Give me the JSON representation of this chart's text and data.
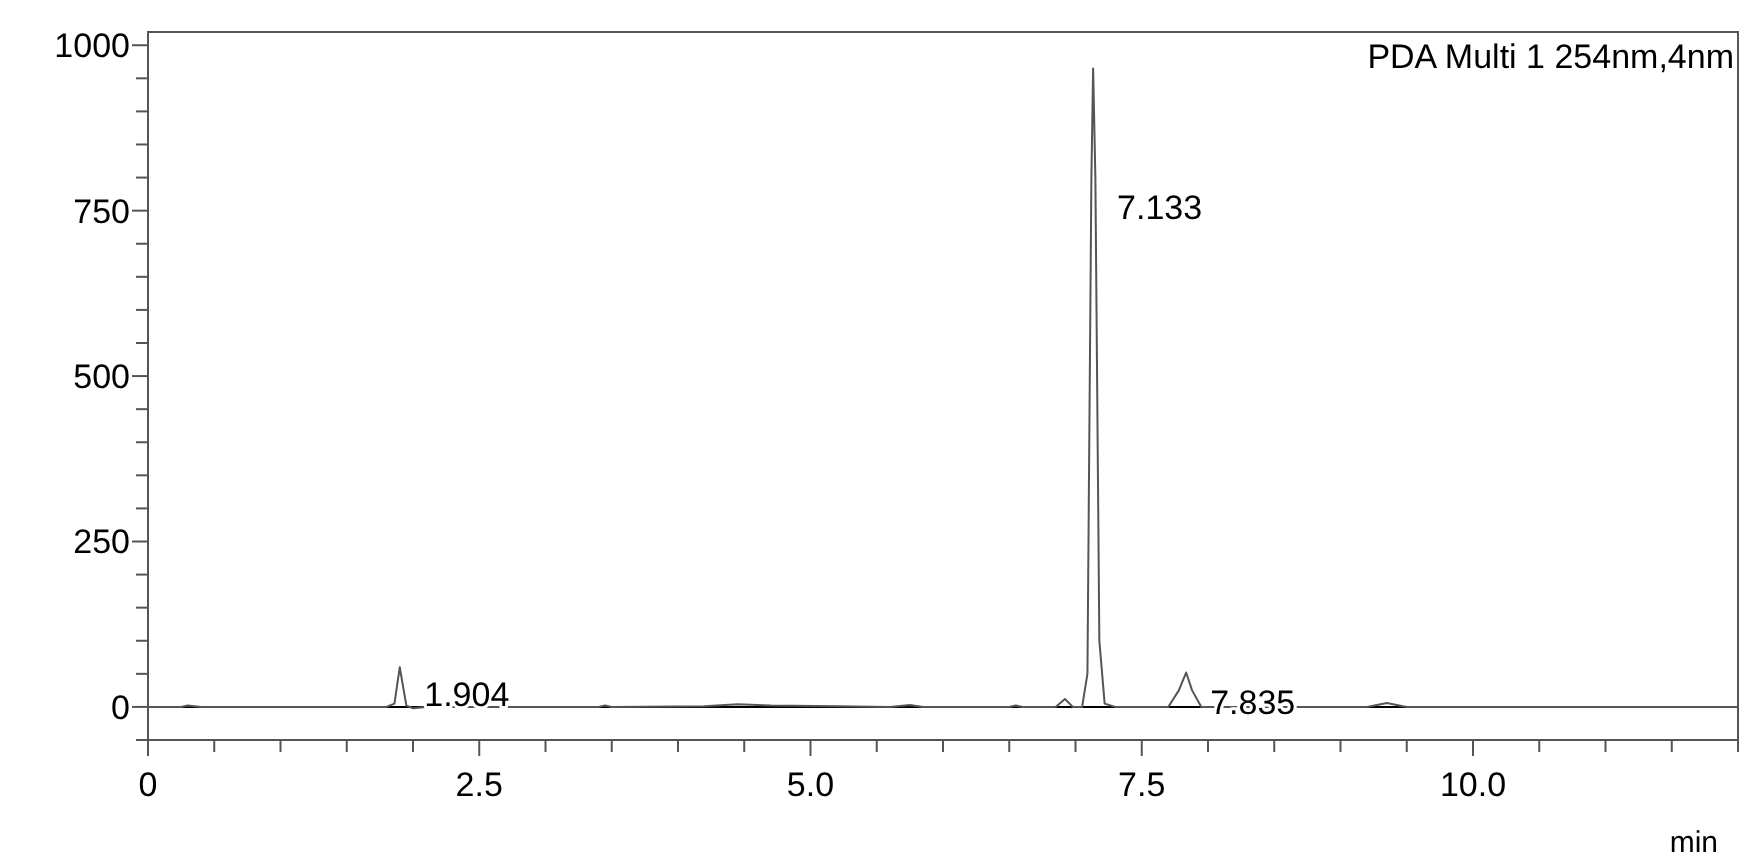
{
  "chart_data": {
    "type": "line",
    "xlabel": "min",
    "xlim": [
      0,
      12
    ],
    "ylim": [
      -50,
      1020
    ],
    "xticks": [
      0,
      {
        "value": 0.5,
        "label": null
      },
      {
        "value": 1,
        "label": null
      },
      {
        "value": 1.5,
        "label": null
      },
      {
        "value": 2,
        "label": null
      },
      {
        "value": 2.5,
        "label": "2.5"
      },
      {
        "value": 3,
        "label": null
      },
      {
        "value": 3.5,
        "label": null
      },
      {
        "value": 4,
        "label": null
      },
      {
        "value": 4.5,
        "label": null
      },
      {
        "value": 5,
        "label": "5.0"
      },
      {
        "value": 5.5,
        "label": null
      },
      {
        "value": 6,
        "label": null
      },
      {
        "value": 6.5,
        "label": null
      },
      {
        "value": 7,
        "label": null
      },
      {
        "value": 7.5,
        "label": "7.5"
      },
      {
        "value": 8,
        "label": null
      },
      {
        "value": 8.5,
        "label": null
      },
      {
        "value": 9,
        "label": null
      },
      {
        "value": 9.5,
        "label": null
      },
      {
        "value": 10,
        "label": "10.0"
      },
      {
        "value": 10.5,
        "label": null
      },
      {
        "value": 11,
        "label": null
      },
      {
        "value": 11.5,
        "label": null
      },
      {
        "value": 12,
        "label": null
      }
    ],
    "yticks": [
      {
        "value": -50,
        "label": null
      },
      0,
      {
        "value": 50,
        "label": null
      },
      {
        "value": 100,
        "label": null
      },
      {
        "value": 150,
        "label": null
      },
      {
        "value": 200,
        "label": null
      },
      250,
      {
        "value": 300,
        "label": null
      },
      {
        "value": 350,
        "label": null
      },
      {
        "value": 400,
        "label": null
      },
      {
        "value": 450,
        "label": null
      },
      500,
      {
        "value": 550,
        "label": null
      },
      {
        "value": 600,
        "label": null
      },
      {
        "value": 650,
        "label": null
      },
      {
        "value": 700,
        "label": null
      },
      750,
      {
        "value": 800,
        "label": null
      },
      {
        "value": 850,
        "label": null
      },
      {
        "value": 900,
        "label": null
      },
      {
        "value": 950,
        "label": null
      },
      1000
    ],
    "grid": false,
    "marker": "none",
    "line_style": "solid",
    "ref_lines": [
      {
        "axis": "y",
        "value": 0,
        "label": null,
        "color": "#000000"
      }
    ],
    "annotations": [
      "PDA Multi 1 254nm,4nm",
      {
        "text": "1.904",
        "x": 1.904,
        "y": 20
      },
      {
        "text": "7.133",
        "x": 7.133,
        "y": 755
      },
      {
        "text": "7.835",
        "x": 7.835,
        "y": 8
      }
    ],
    "series": [
      {
        "color": "#555555",
        "x": [
          0,
          0.25,
          0.3,
          0.4,
          1.8,
          1.86,
          1.9,
          1.95,
          2.0,
          2.1,
          3.4,
          3.45,
          3.5,
          4.2,
          4.45,
          4.7,
          5.2,
          5.6,
          5.75,
          5.85,
          6.5,
          6.55,
          6.6,
          6.85,
          6.92,
          6.98,
          7.05,
          7.09,
          7.12,
          7.133,
          7.15,
          7.18,
          7.22,
          7.3,
          7.7,
          7.78,
          7.835,
          7.88,
          7.95,
          8.5,
          9.2,
          9.35,
          9.5,
          12
        ],
        "values": [
          0,
          0,
          2,
          0,
          0,
          5,
          60,
          2,
          -2,
          0,
          0,
          2,
          0,
          1,
          4,
          2,
          1,
          0,
          3,
          0,
          0,
          2,
          0,
          0,
          12,
          0,
          0,
          50,
          800,
          965,
          800,
          100,
          5,
          0,
          0,
          25,
          52,
          25,
          0,
          0,
          0,
          6,
          0,
          0
        ]
      }
    ]
  }
}
